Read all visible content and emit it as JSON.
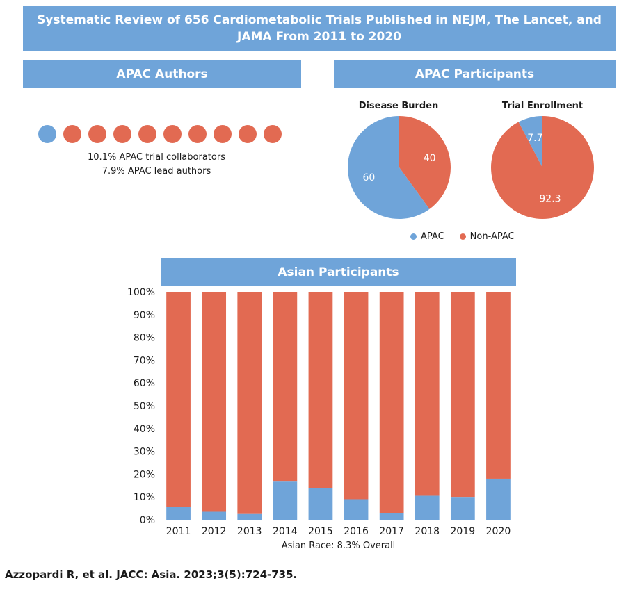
{
  "header": {
    "title_line1": "Systematic Review of 656 Cardiometabolic Trials Published in NEJM, The Lancet, and",
    "title_line2": "JAMA From 2011 to 2020"
  },
  "authors": {
    "banner": "APAC Authors",
    "collaborators_text": "10.1% APAC trial collaborators",
    "lead_text": "7.9% APAC lead authors",
    "dot_count": 10,
    "apac_dot_count": 1
  },
  "participants": {
    "banner": "APAC Participants",
    "legend": {
      "apac": "APAC",
      "non_apac": "Non-APAC"
    }
  },
  "asian": {
    "banner": "Asian Participants",
    "footer": "Asian Race: 8.3% Overall"
  },
  "citation": "Azzopardi R, et al. JACC: Asia. 2023;3(5):724-735.",
  "colors": {
    "apac": "#6fa4d9",
    "non_apac": "#e26a52",
    "banner": "#6fa4d9"
  },
  "chart_data": [
    {
      "type": "pie",
      "title": "Disease Burden",
      "labels": [
        "APAC",
        "Non-APAC"
      ],
      "values": [
        60,
        40
      ]
    },
    {
      "type": "pie",
      "title": "Trial Enrollment",
      "labels": [
        "APAC",
        "Non-APAC"
      ],
      "values": [
        7.7,
        92.3
      ]
    },
    {
      "type": "bar",
      "stacked": true,
      "title": "Asian Participants",
      "categories": [
        "2011",
        "2012",
        "2013",
        "2014",
        "2015",
        "2016",
        "2017",
        "2018",
        "2019",
        "2020"
      ],
      "series": [
        {
          "values": [
            5.5,
            3.5,
            2.5,
            17,
            14,
            9,
            3,
            10.5,
            10,
            18
          ]
        },
        {
          "values": [
            94.5,
            96.5,
            97.5,
            83,
            86,
            91,
            97,
            89.5,
            90,
            82
          ]
        }
      ],
      "ylim": [
        0,
        100
      ],
      "yticks": [
        "0%",
        "10%",
        "20%",
        "30%",
        "40%",
        "50%",
        "60%",
        "70%",
        "80%",
        "90%",
        "100%"
      ],
      "xlabel": "Asian Race: 8.3% Overall",
      "grid": false
    }
  ]
}
